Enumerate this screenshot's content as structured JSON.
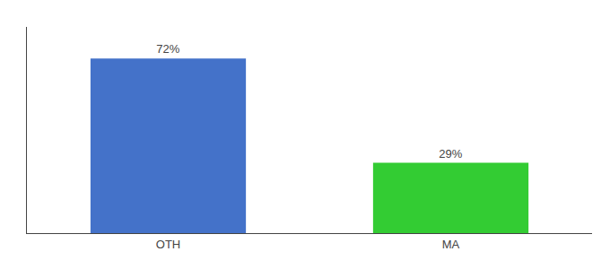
{
  "chart_data": {
    "type": "bar",
    "categories": [
      "OTH",
      "MA"
    ],
    "values": [
      72,
      29
    ],
    "value_labels": [
      "72%",
      "29%"
    ],
    "colors": [
      "#4472c9",
      "#33cc33"
    ],
    "ylim": [
      0,
      85
    ],
    "data_labels": true,
    "tick_labels": "x",
    "grid": false
  }
}
